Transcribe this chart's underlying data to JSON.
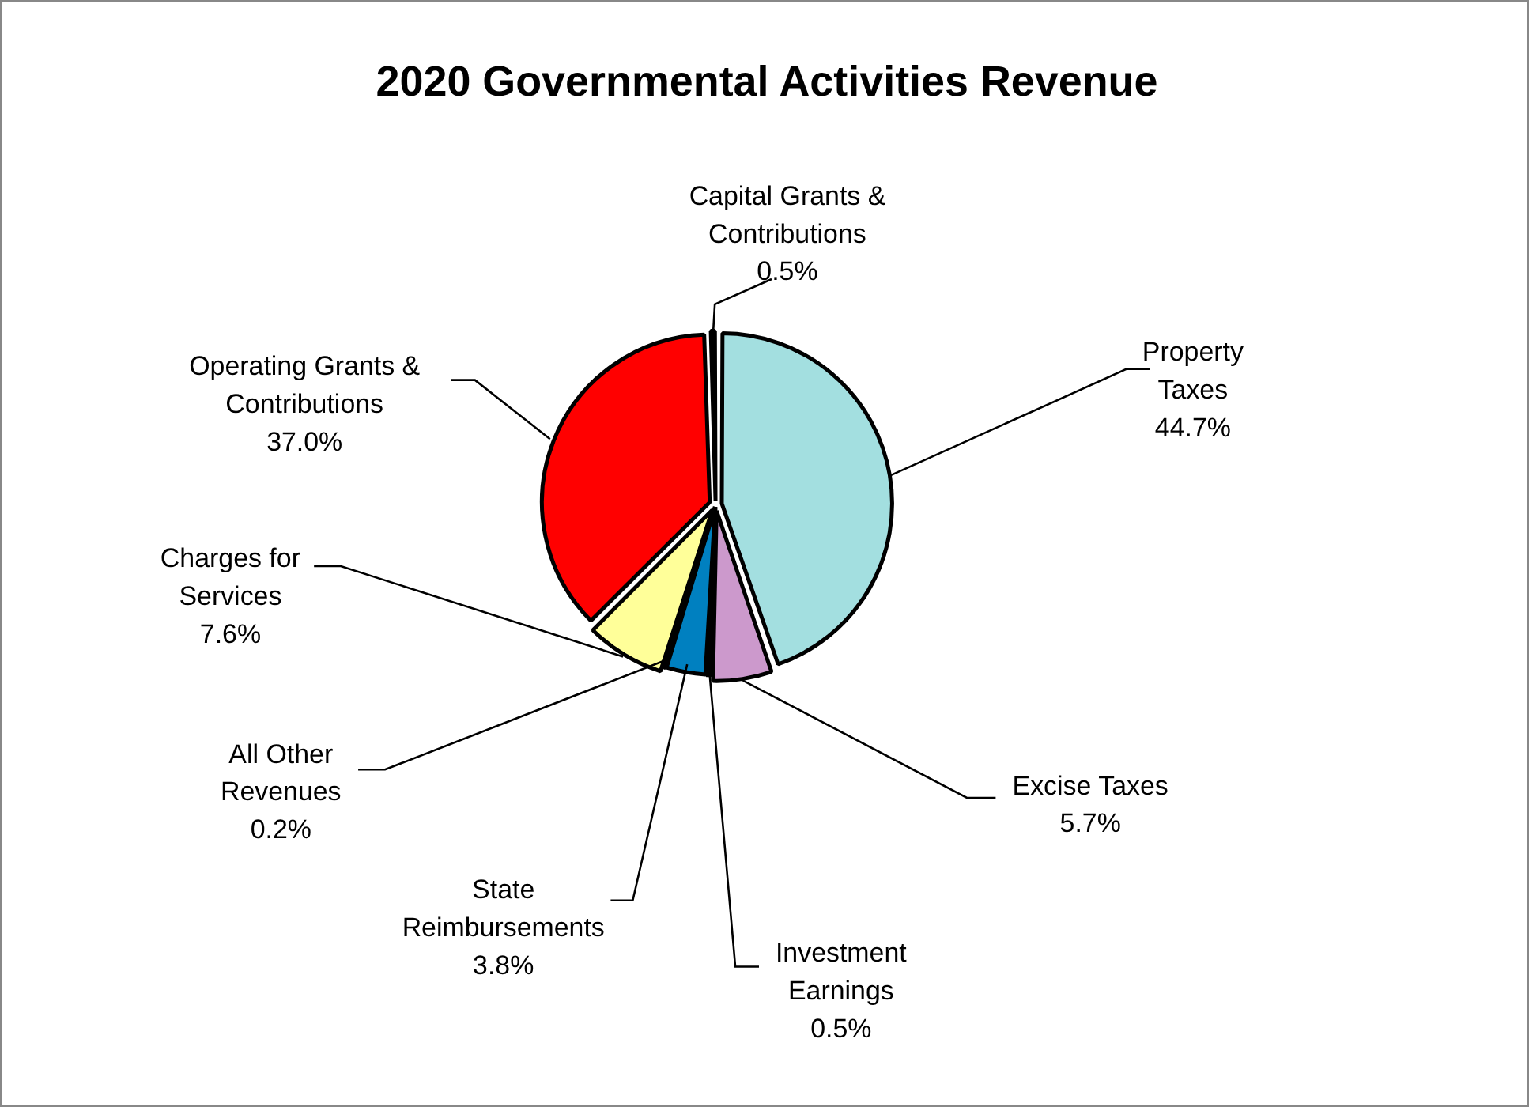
{
  "chart_data": {
    "type": "pie",
    "title": "2020 Governmental Activities Revenue",
    "categories": [
      "Property Taxes",
      "Excise Taxes",
      "Investment Earnings",
      "State Reimbursements",
      "All Other Revenues",
      "Charges for Services",
      "Operating Grants & Contributions",
      "Capital Grants & Contributions"
    ],
    "values": [
      44.7,
      5.7,
      0.5,
      3.8,
      0.2,
      7.6,
      37.0,
      0.5
    ],
    "value_labels": [
      "44.7%",
      "5.7%",
      "0.5%",
      "3.8%",
      "0.2%",
      "7.6%",
      "37.0%",
      "0.5%"
    ],
    "colors": [
      "#a3dfe0",
      "#cc99cc",
      "#000000",
      "#0080c0",
      "#ffffff",
      "#ffff99",
      "#ff0000",
      "#000000"
    ],
    "legend": false
  }
}
